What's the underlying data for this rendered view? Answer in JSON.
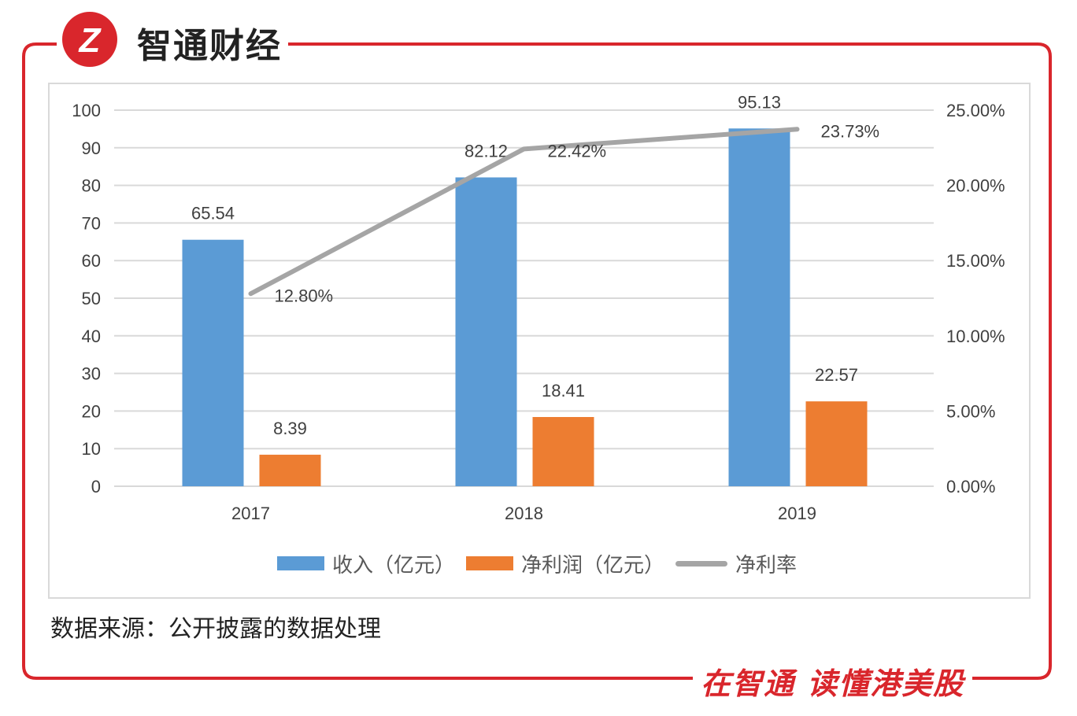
{
  "brand": {
    "name": "智通财经",
    "logo_glyph": "Z",
    "color": "#d9262c"
  },
  "source_note": "数据来源：公开披露的数据处理",
  "slogan": "在智通 读懂港美股",
  "chart_data": {
    "type": "bar",
    "categories": [
      "2017",
      "2018",
      "2019"
    ],
    "series": [
      {
        "name": "收入（亿元）",
        "type": "bar",
        "axis": "left",
        "color": "#5b9bd5",
        "values": [
          65.54,
          82.12,
          95.13
        ],
        "labels": [
          "65.54",
          "82.12",
          "95.13"
        ]
      },
      {
        "name": "净利润（亿元）",
        "type": "bar",
        "axis": "left",
        "color": "#ed7d31",
        "values": [
          8.39,
          18.41,
          22.57
        ],
        "labels": [
          "8.39",
          "18.41",
          "22.57"
        ]
      },
      {
        "name": "净利率",
        "type": "line",
        "axis": "right",
        "color": "#a5a5a5",
        "values": [
          12.8,
          22.42,
          23.73
        ],
        "labels": [
          "12.80%",
          "22.42%",
          "23.73%"
        ]
      }
    ],
    "y_left": {
      "min": 0,
      "max": 100,
      "step": 10,
      "ticks": [
        "0",
        "10",
        "20",
        "30",
        "40",
        "50",
        "60",
        "70",
        "80",
        "90",
        "100"
      ]
    },
    "y_right": {
      "min": 0,
      "max": 25,
      "step": 5,
      "ticks": [
        "0.00%",
        "5.00%",
        "10.00%",
        "15.00%",
        "20.00%",
        "25.00%"
      ]
    },
    "grid": true,
    "legend_position": "bottom"
  }
}
